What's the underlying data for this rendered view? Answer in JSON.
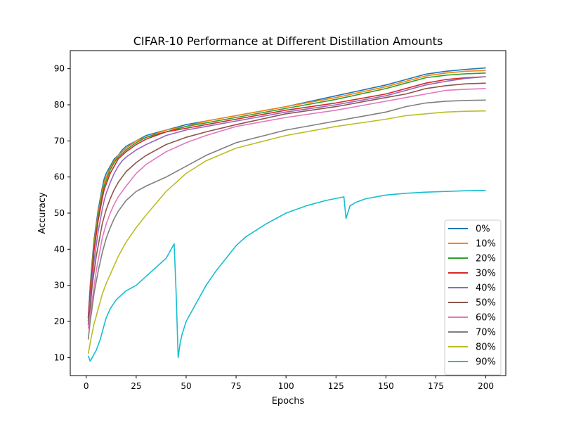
{
  "chart_data": {
    "type": "line",
    "title": "CIFAR-10 Performance at Different Distillation Amounts",
    "xlabel": "Epochs",
    "ylabel": "Accuracy",
    "xlim": [
      -8,
      210
    ],
    "ylim": [
      5,
      95
    ],
    "xticks": [
      0,
      25,
      50,
      75,
      100,
      125,
      150,
      175,
      200
    ],
    "yticks": [
      10,
      20,
      30,
      40,
      50,
      60,
      70,
      80,
      90
    ],
    "grid": false,
    "legend_position": "lower-right",
    "series": [
      {
        "name": "0%",
        "color": "#1f77b4",
        "x": [
          1,
          2,
          3,
          4,
          5,
          6,
          7,
          8,
          9,
          10,
          12,
          14,
          16,
          18,
          20,
          25,
          30,
          40,
          50,
          60,
          75,
          100,
          125,
          150,
          160,
          170,
          180,
          190,
          200
        ],
        "y": [
          21,
          30,
          37,
          43,
          47,
          51,
          54,
          57,
          59.5,
          61,
          63,
          65,
          66,
          67.5,
          68.5,
          70,
          71.5,
          73,
          74.5,
          75.5,
          77,
          79.5,
          82.5,
          85.5,
          87,
          88.5,
          89.3,
          89.8,
          90.2
        ]
      },
      {
        "name": "10%",
        "color": "#ff7f0e",
        "x": [
          1,
          2,
          3,
          4,
          5,
          6,
          7,
          8,
          9,
          10,
          12,
          14,
          16,
          18,
          20,
          25,
          30,
          40,
          50,
          60,
          75,
          100,
          125,
          150,
          160,
          170,
          180,
          190,
          200
        ],
        "y": [
          20,
          29,
          36,
          42,
          46,
          50,
          53,
          56,
          58.5,
          60,
          62.5,
          64.5,
          66,
          67,
          68,
          70,
          71,
          73,
          74,
          75.5,
          77,
          79.5,
          82,
          85,
          86.5,
          88,
          88.8,
          89.3,
          89.5
        ]
      },
      {
        "name": "20%",
        "color": "#2ca02c",
        "x": [
          1,
          2,
          3,
          4,
          5,
          6,
          7,
          8,
          9,
          10,
          12,
          14,
          16,
          18,
          20,
          25,
          30,
          40,
          50,
          60,
          75,
          100,
          125,
          150,
          160,
          170,
          180,
          190,
          200
        ],
        "y": [
          20,
          28,
          35,
          41,
          45,
          49,
          52,
          55,
          57.5,
          59,
          62,
          64,
          65.5,
          66.5,
          67.5,
          69.5,
          71,
          72.5,
          74,
          75,
          76.5,
          79,
          81.5,
          84.5,
          86,
          87.5,
          88.2,
          88.6,
          88.8
        ]
      },
      {
        "name": "30%",
        "color": "#d62728",
        "x": [
          1,
          2,
          3,
          4,
          5,
          6,
          7,
          8,
          9,
          10,
          12,
          14,
          16,
          18,
          20,
          25,
          30,
          40,
          50,
          60,
          75,
          100,
          125,
          150,
          160,
          170,
          180,
          190,
          200
        ],
        "y": [
          21,
          28,
          34,
          40,
          44,
          48,
          51,
          54,
          56.5,
          58,
          61,
          63,
          65,
          66,
          67,
          69,
          70.5,
          72.5,
          73.5,
          74.5,
          76,
          78.5,
          80.5,
          83,
          84.5,
          86,
          87,
          87.5,
          87.8
        ]
      },
      {
        "name": "40%",
        "color": "#9467bd",
        "x": [
          1,
          2,
          3,
          4,
          5,
          6,
          7,
          8,
          9,
          10,
          12,
          14,
          16,
          18,
          20,
          25,
          30,
          40,
          50,
          60,
          75,
          100,
          125,
          150,
          160,
          170,
          180,
          190,
          200
        ],
        "y": [
          19,
          26,
          32,
          37,
          41,
          45,
          48,
          51,
          53.5,
          55.5,
          58.5,
          61,
          63,
          64.5,
          65.5,
          67.5,
          69,
          71.5,
          73,
          74,
          75.5,
          78,
          80,
          82.5,
          84,
          85.5,
          86.5,
          87.3,
          87.8
        ]
      },
      {
        "name": "50%",
        "color": "#8c564b",
        "x": [
          1,
          2,
          3,
          4,
          5,
          6,
          7,
          8,
          9,
          10,
          12,
          14,
          16,
          18,
          20,
          25,
          30,
          40,
          50,
          60,
          75,
          100,
          125,
          150,
          160,
          170,
          180,
          190,
          200
        ],
        "y": [
          19,
          24,
          30,
          34,
          38,
          41,
          44,
          47,
          49,
          51,
          54,
          56.5,
          58.5,
          60,
          61.5,
          64,
          66,
          69,
          71,
          72.5,
          74.5,
          77.5,
          79.5,
          82,
          83,
          84.5,
          85.3,
          85.8,
          86
        ]
      },
      {
        "name": "60%",
        "color": "#e377c2",
        "x": [
          1,
          2,
          3,
          4,
          5,
          6,
          7,
          8,
          9,
          10,
          12,
          14,
          16,
          18,
          20,
          25,
          30,
          40,
          50,
          60,
          75,
          100,
          125,
          150,
          160,
          170,
          180,
          190,
          200
        ],
        "y": [
          18,
          22,
          26,
          30,
          34,
          37,
          40,
          43,
          45,
          47,
          50,
          52.5,
          54.5,
          56,
          57.5,
          61,
          63.5,
          67,
          69.5,
          71.5,
          74,
          76.5,
          78.5,
          81,
          82,
          83,
          84,
          84.3,
          84.5
        ]
      },
      {
        "name": "70%",
        "color": "#7f7f7f",
        "x": [
          1,
          2,
          3,
          4,
          5,
          6,
          7,
          8,
          9,
          10,
          12,
          14,
          16,
          18,
          20,
          25,
          30,
          40,
          50,
          60,
          75,
          100,
          125,
          150,
          160,
          170,
          180,
          190,
          200
        ],
        "y": [
          15,
          20,
          24,
          28,
          31,
          34,
          36.5,
          39,
          41,
          43,
          46,
          48.5,
          50.5,
          52,
          53.5,
          56,
          57.5,
          60,
          63,
          66,
          69.5,
          73,
          75.5,
          78,
          79.5,
          80.5,
          81,
          81.2,
          81.3
        ]
      },
      {
        "name": "80%",
        "color": "#bcbd22",
        "x": [
          1,
          2,
          3,
          4,
          5,
          6,
          7,
          8,
          9,
          10,
          12,
          14,
          16,
          18,
          20,
          25,
          30,
          40,
          50,
          60,
          75,
          100,
          125,
          150,
          160,
          170,
          180,
          190,
          200
        ],
        "y": [
          11,
          14,
          17,
          19.5,
          21.5,
          23.5,
          25.5,
          27.5,
          29,
          30.5,
          33,
          35.5,
          38,
          40,
          42,
          46,
          49.5,
          56,
          61,
          64.5,
          68,
          71.5,
          74,
          76,
          77,
          77.5,
          78,
          78.2,
          78.3
        ]
      },
      {
        "name": "90%",
        "color": "#17becf",
        "x": [
          1,
          2,
          3,
          4,
          5,
          6,
          7,
          8,
          9,
          10,
          12,
          15,
          18,
          20,
          25,
          30,
          35,
          40,
          44,
          45,
          46,
          47,
          48,
          50,
          55,
          60,
          65,
          70,
          75,
          80,
          90,
          100,
          110,
          120,
          129,
          130,
          132,
          135,
          140,
          150,
          160,
          170,
          180,
          190,
          200
        ],
        "y": [
          10.5,
          9,
          10,
          11,
          12,
          13.5,
          15,
          17,
          19,
          21,
          23.5,
          26,
          27.5,
          28.5,
          30,
          32.5,
          35,
          37.5,
          41.5,
          28,
          10,
          14,
          16.5,
          20,
          25,
          30,
          34,
          37.5,
          41,
          43.5,
          47,
          50,
          52,
          53.5,
          54.5,
          48.5,
          52,
          53,
          54,
          55,
          55.5,
          55.8,
          56,
          56.2,
          56.3
        ]
      }
    ]
  }
}
